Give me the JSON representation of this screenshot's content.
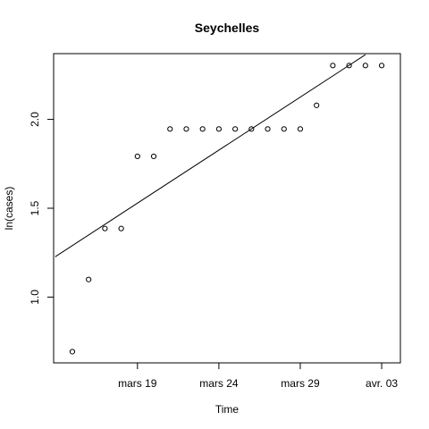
{
  "chart_data": {
    "type": "scatter",
    "title": "Seychelles",
    "xlabel": "Time",
    "ylabel": "ln(cases)",
    "x_axis_type": "date",
    "x_ticks": [
      {
        "date": "2020-03-19",
        "label": "mars 19"
      },
      {
        "date": "2020-03-24",
        "label": "mars 24"
      },
      {
        "date": "2020-03-29",
        "label": "mars 29"
      },
      {
        "date": "2020-04-03",
        "label": "avr. 03"
      }
    ],
    "y_ticks": [
      1.0,
      1.5,
      2.0
    ],
    "y_tick_labels": [
      "1.0",
      "1.5",
      "2.0"
    ],
    "xlim": [
      "2020-03-14",
      "2020-04-04"
    ],
    "ylim": [
      0.63,
      2.37
    ],
    "grid": false,
    "points": [
      {
        "x": "2020-03-15",
        "y": 0.693
      },
      {
        "x": "2020-03-16",
        "y": 1.099
      },
      {
        "x": "2020-03-17",
        "y": 1.386
      },
      {
        "x": "2020-03-18",
        "y": 1.386
      },
      {
        "x": "2020-03-19",
        "y": 1.792
      },
      {
        "x": "2020-03-20",
        "y": 1.792
      },
      {
        "x": "2020-03-21",
        "y": 1.946
      },
      {
        "x": "2020-03-22",
        "y": 1.946
      },
      {
        "x": "2020-03-23",
        "y": 1.946
      },
      {
        "x": "2020-03-24",
        "y": 1.946
      },
      {
        "x": "2020-03-25",
        "y": 1.946
      },
      {
        "x": "2020-03-26",
        "y": 1.946
      },
      {
        "x": "2020-03-27",
        "y": 1.946
      },
      {
        "x": "2020-03-28",
        "y": 1.946
      },
      {
        "x": "2020-03-29",
        "y": 1.946
      },
      {
        "x": "2020-03-30",
        "y": 2.079
      },
      {
        "x": "2020-03-31",
        "y": 2.303
      },
      {
        "x": "2020-04-01",
        "y": 2.303
      },
      {
        "x": "2020-04-02",
        "y": 2.303
      },
      {
        "x": "2020-04-03",
        "y": 2.303
      }
    ],
    "fit_line": {
      "type": "linear",
      "points": [
        {
          "x": "2020-03-14",
          "y": 1.227
        },
        {
          "x": "2020-04-02",
          "y": 2.364
        }
      ]
    },
    "colors": {
      "points": "#000000",
      "line": "#000000",
      "axes": "#000000"
    }
  }
}
